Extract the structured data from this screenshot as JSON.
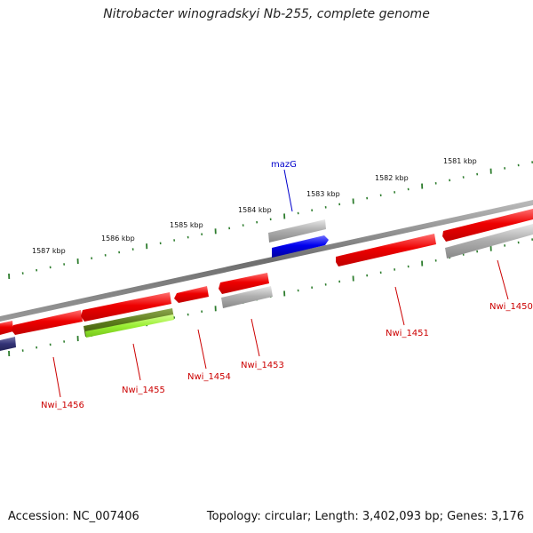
{
  "title": "Nitrobacter winogradskyi Nb-255, complete genome",
  "footer": {
    "accession": "Accession: NC_007406",
    "summary": "Topology: circular; Length: 3,402,093 bp; Genes: 3,176"
  },
  "ticks": {
    "labels": [
      "1587 kbp",
      "1586 kbp",
      "1585 kbp",
      "1584 kbp",
      "1583 kbp",
      "1582 kbp",
      "1581 kbp"
    ]
  },
  "genes": {
    "labels": [
      "mazG",
      "Nwi_1456",
      "Nwi_1455",
      "Nwi_1454",
      "Nwi_1453",
      "Nwi_1451",
      "Nwi_1450"
    ]
  },
  "colors": {
    "backbone": "#777777",
    "tick": "#2e7d2e",
    "gene_red": "#ee0000",
    "gene_gray": "#aaaaaa",
    "gene_blue": "#0000ee",
    "gene_olive": "#5a7a1a",
    "gene_lime": "#99ee33",
    "gene_navy": "#333377",
    "label_red": "#cc0000",
    "label_blue": "#0000cc"
  }
}
